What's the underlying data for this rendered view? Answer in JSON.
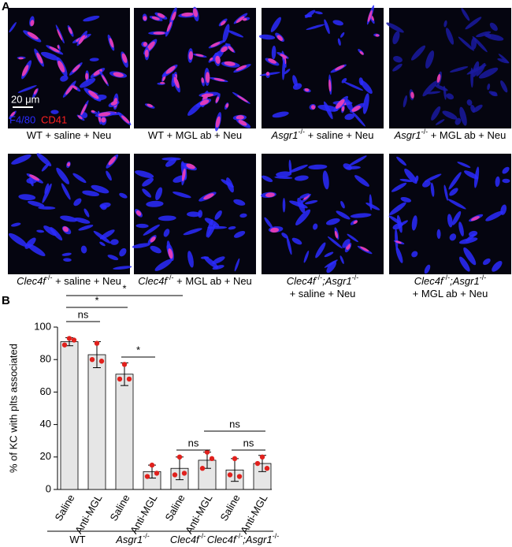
{
  "panel_a": {
    "label": "A",
    "scale_bar": "20 μm",
    "stain_1": "F4/80",
    "stain_2": "CD41",
    "images": [
      {
        "caption": [
          [
            {
              "t": "WT + saline + Neu"
            }
          ]
        ]
      },
      {
        "caption": [
          [
            {
              "t": "WT + MGL ab + Neu"
            }
          ]
        ]
      },
      {
        "caption": [
          [
            {
              "t": "Asgr1",
              "i": true
            },
            {
              "t": "-/-",
              "sup": true
            },
            {
              "t": " + saline + Neu"
            }
          ]
        ]
      },
      {
        "caption": [
          [
            {
              "t": "Asgr1",
              "i": true
            },
            {
              "t": "-/-",
              "sup": true
            },
            {
              "t": " + MGL ab + Neu"
            }
          ]
        ]
      },
      {
        "caption": [
          [
            {
              "t": "Clec4f",
              "i": true
            },
            {
              "t": "-/-",
              "sup": true
            },
            {
              "t": " + saline + Neu"
            }
          ]
        ]
      },
      {
        "caption": [
          [
            {
              "t": "Clec4f",
              "i": true
            },
            {
              "t": "-/-",
              "sup": true
            },
            {
              "t": " + MGL ab + Neu"
            }
          ]
        ]
      },
      {
        "caption": [
          [
            {
              "t": "Clec4f",
              "i": true
            },
            {
              "t": "-/-",
              "sup": true
            },
            {
              "t": ";Asgr1",
              "i": true
            },
            {
              "t": "-/-",
              "sup": true
            }
          ],
          [
            {
              "t": "+ saline + Neu"
            }
          ]
        ]
      },
      {
        "caption": [
          [
            {
              "t": "Clec4f",
              "i": true
            },
            {
              "t": "-/-",
              "sup": true
            },
            {
              "t": ";Asgr1",
              "i": true
            },
            {
              "t": "-/-",
              "sup": true
            }
          ],
          [
            {
              "t": "+ MGL ab + Neu"
            }
          ]
        ]
      }
    ]
  },
  "chart_data": {
    "type": "bar",
    "label": "B",
    "y_label": "% of KC with plts associated",
    "categories": [
      "Saline",
      "Anti-MGL",
      "Saline",
      "Anti-MGL",
      "Saline",
      "Anti-MGL",
      "Saline",
      "Anti-MGL"
    ],
    "values": [
      91,
      83,
      71,
      11,
      13,
      18,
      12,
      16
    ],
    "errors": [
      2.5,
      8,
      7,
      4,
      7,
      5,
      7,
      5
    ],
    "points": [
      [
        93,
        92,
        89
      ],
      [
        90,
        79,
        80
      ],
      [
        77,
        68,
        68
      ],
      [
        15,
        10,
        8
      ],
      [
        20,
        10,
        9
      ],
      [
        23,
        19,
        13
      ],
      [
        19,
        8,
        9
      ],
      [
        20,
        13,
        16
      ]
    ],
    "color": "#e6e6e6",
    "point_color": "#e0211d",
    "groups": [
      [
        {
          "t": "WT"
        }
      ],
      [
        {
          "t": "Asgr1",
          "i": true
        },
        {
          "t": "-/-",
          "sup": true
        }
      ],
      [
        {
          "t": "Clec4f",
          "i": true
        },
        {
          "t": "-/-",
          "sup": true
        }
      ],
      [
        {
          "t": "Clec4f",
          "i": true
        },
        {
          "t": "-/-",
          "sup": true
        },
        {
          "t": ";Asgr1",
          "i": true
        },
        {
          "t": "-/-",
          "sup": true
        }
      ]
    ],
    "significance": [
      "ns",
      "*",
      "*",
      "*",
      "ns",
      "ns",
      "ns"
    ],
    "ylim": [
      0,
      100
    ],
    "yticks": [
      0,
      20,
      40,
      60,
      80,
      100
    ]
  }
}
